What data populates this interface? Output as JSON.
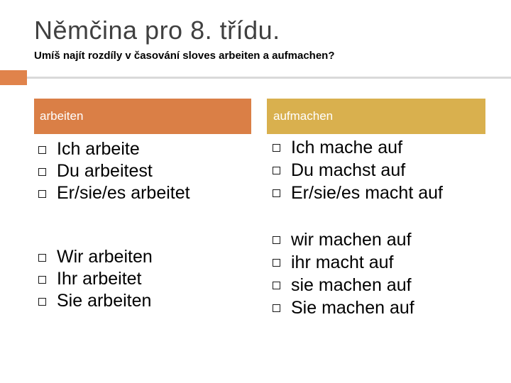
{
  "title": "Němčina pro 8. třídu.",
  "subtitle": "Umíš najít rozdíly v časování sloves arbeiten a aufmachen?",
  "accent_color": "#e0834b",
  "columns": [
    {
      "header": "arbeiten",
      "header_color": "#da7f46",
      "groups": [
        [
          "Ich arbeite",
          "Du arbeitest",
          "Er/sie/es arbeitet"
        ],
        [
          "Wir arbeiten",
          "Ihr arbeitet",
          "Sie arbeiten"
        ]
      ]
    },
    {
      "header": "aufmachen",
      "header_color": "#d9b04e",
      "groups": [
        [
          "Ich mache auf",
          "Du machst auf",
          "Er/sie/es macht auf"
        ],
        [
          "wir machen auf",
          "ihr macht auf",
          "sie machen auf",
          "Sie machen auf"
        ]
      ]
    }
  ],
  "bullet_icon": "square-bullet-icon"
}
